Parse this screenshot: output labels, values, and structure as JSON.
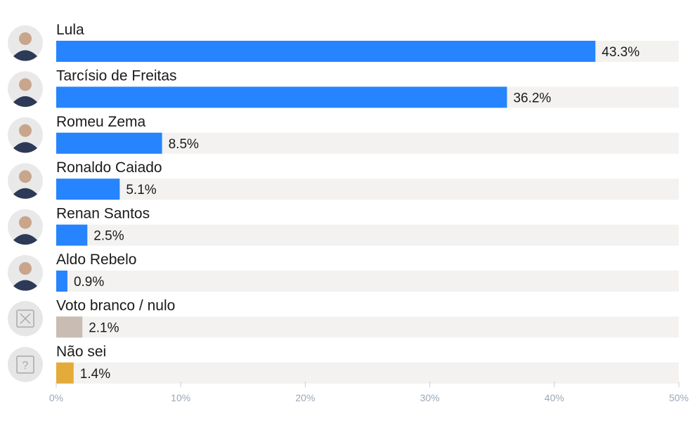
{
  "chart_data": {
    "type": "bar",
    "orientation": "horizontal",
    "categories": [
      "Lula",
      "Tarcísio de Freitas",
      "Romeu Zema",
      "Ronaldo Caiado",
      "Renan Santos",
      "Aldo Rebelo",
      "Voto branco / nulo",
      "Não sei"
    ],
    "values": [
      43.3,
      36.2,
      8.5,
      5.1,
      2.5,
      0.9,
      2.1,
      1.4
    ],
    "value_labels": [
      "43.3%",
      "36.2%",
      "8.5%",
      "5.1%",
      "2.5%",
      "0.9%",
      "2.1%",
      "1.4%"
    ],
    "bar_colors": [
      "#2684fe",
      "#2684fe",
      "#2684fe",
      "#2684fe",
      "#2684fe",
      "#2684fe",
      "#c8bcb3",
      "#e4ab3b"
    ],
    "row_icons": [
      "candidate-photo",
      "candidate-photo",
      "candidate-photo",
      "candidate-photo",
      "candidate-photo",
      "candidate-photo",
      "x-box-icon",
      "question-box-icon"
    ],
    "track_color": "#f3f2f0",
    "xlim": [
      0,
      50
    ],
    "x_ticks": [
      0,
      10,
      20,
      30,
      40,
      50
    ],
    "x_tick_labels": [
      "0%",
      "10%",
      "20%",
      "30%",
      "40%",
      "50%"
    ],
    "grid": false,
    "legend": "none"
  }
}
